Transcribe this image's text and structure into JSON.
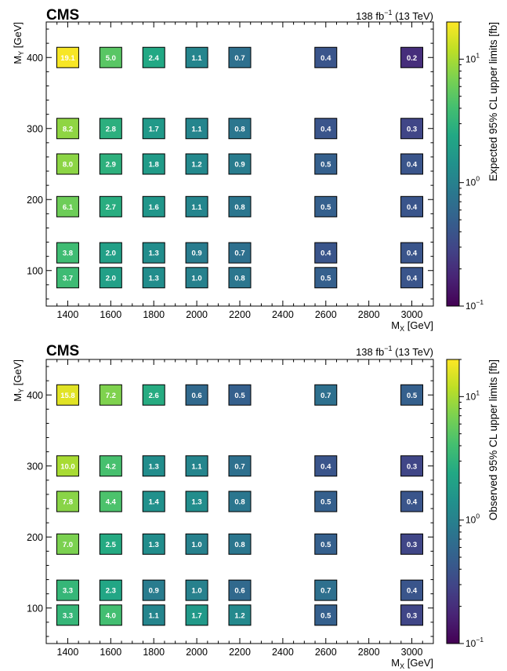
{
  "chart_data": [
    {
      "type": "heatmap",
      "experiment": "CMS",
      "lumi_main": "138 fb",
      "lumi_sup": "−1",
      "lumi_energy": " (13 TeV)",
      "xlabel_main": "M",
      "xlabel_sub": "X",
      "xlabel_unit": " [GeV]",
      "ylabel_main": "M",
      "ylabel_sub": "Y",
      "ylabel_unit": " [GeV]",
      "xlim": [
        1300,
        3100
      ],
      "ylim": [
        50,
        450
      ],
      "xticks": [
        1400,
        1600,
        1800,
        2000,
        2200,
        2400,
        2600,
        2800,
        3000
      ],
      "yticks": [
        100,
        200,
        300,
        400
      ],
      "colorbar": {
        "label": "Expected 95% CL upper limits [fb]",
        "scale": "log",
        "range": [
          0.1,
          20
        ],
        "ticks": [
          {
            "base": "10",
            "exp": "1",
            "value": 10
          },
          {
            "base": "10",
            "exp": "0",
            "value": 1
          },
          {
            "base": "10",
            "exp": "−1",
            "value": 0.1
          }
        ]
      },
      "cells": [
        {
          "x": 1400,
          "y": 400,
          "label": "19.1",
          "value": 19.1
        },
        {
          "x": 1600,
          "y": 400,
          "label": "5.0",
          "value": 5.0
        },
        {
          "x": 1800,
          "y": 400,
          "label": "2.4",
          "value": 2.4
        },
        {
          "x": 2000,
          "y": 400,
          "label": "1.1",
          "value": 1.1
        },
        {
          "x": 2200,
          "y": 400,
          "label": "0.7",
          "value": 0.7
        },
        {
          "x": 2600,
          "y": 400,
          "label": "0.4",
          "value": 0.4
        },
        {
          "x": 3000,
          "y": 400,
          "label": "0.2",
          "value": 0.2
        },
        {
          "x": 1400,
          "y": 300,
          "label": "8.2",
          "value": 8.2
        },
        {
          "x": 1600,
          "y": 300,
          "label": "2.8",
          "value": 2.8
        },
        {
          "x": 1800,
          "y": 300,
          "label": "1.7",
          "value": 1.7
        },
        {
          "x": 2000,
          "y": 300,
          "label": "1.1",
          "value": 1.1
        },
        {
          "x": 2200,
          "y": 300,
          "label": "0.8",
          "value": 0.8
        },
        {
          "x": 2600,
          "y": 300,
          "label": "0.4",
          "value": 0.4
        },
        {
          "x": 3000,
          "y": 300,
          "label": "0.3",
          "value": 0.3
        },
        {
          "x": 1400,
          "y": 250,
          "label": "8.0",
          "value": 8.0
        },
        {
          "x": 1600,
          "y": 250,
          "label": "2.9",
          "value": 2.9
        },
        {
          "x": 1800,
          "y": 250,
          "label": "1.8",
          "value": 1.8
        },
        {
          "x": 2000,
          "y": 250,
          "label": "1.2",
          "value": 1.2
        },
        {
          "x": 2200,
          "y": 250,
          "label": "0.9",
          "value": 0.9
        },
        {
          "x": 2600,
          "y": 250,
          "label": "0.5",
          "value": 0.5
        },
        {
          "x": 3000,
          "y": 250,
          "label": "0.4",
          "value": 0.4
        },
        {
          "x": 1400,
          "y": 190,
          "label": "6.1",
          "value": 6.1
        },
        {
          "x": 1600,
          "y": 190,
          "label": "2.7",
          "value": 2.7
        },
        {
          "x": 1800,
          "y": 190,
          "label": "1.6",
          "value": 1.6
        },
        {
          "x": 2000,
          "y": 190,
          "label": "1.1",
          "value": 1.1
        },
        {
          "x": 2200,
          "y": 190,
          "label": "0.8",
          "value": 0.8
        },
        {
          "x": 2600,
          "y": 190,
          "label": "0.5",
          "value": 0.5
        },
        {
          "x": 3000,
          "y": 190,
          "label": "0.4",
          "value": 0.4
        },
        {
          "x": 1400,
          "y": 125,
          "label": "3.8",
          "value": 3.8
        },
        {
          "x": 1600,
          "y": 125,
          "label": "2.0",
          "value": 2.0
        },
        {
          "x": 1800,
          "y": 125,
          "label": "1.3",
          "value": 1.3
        },
        {
          "x": 2000,
          "y": 125,
          "label": "0.9",
          "value": 0.9
        },
        {
          "x": 2200,
          "y": 125,
          "label": "0.7",
          "value": 0.7
        },
        {
          "x": 2600,
          "y": 125,
          "label": "0.4",
          "value": 0.4
        },
        {
          "x": 3000,
          "y": 125,
          "label": "0.4",
          "value": 0.4
        },
        {
          "x": 1400,
          "y": 90,
          "label": "3.7",
          "value": 3.7
        },
        {
          "x": 1600,
          "y": 90,
          "label": "2.0",
          "value": 2.0
        },
        {
          "x": 1800,
          "y": 90,
          "label": "1.3",
          "value": 1.3
        },
        {
          "x": 2000,
          "y": 90,
          "label": "1.0",
          "value": 1.0
        },
        {
          "x": 2200,
          "y": 90,
          "label": "0.8",
          "value": 0.8
        },
        {
          "x": 2600,
          "y": 90,
          "label": "0.5",
          "value": 0.5
        },
        {
          "x": 3000,
          "y": 90,
          "label": "0.4",
          "value": 0.4
        }
      ]
    },
    {
      "type": "heatmap",
      "experiment": "CMS",
      "lumi_main": "138 fb",
      "lumi_sup": "−1",
      "lumi_energy": " (13 TeV)",
      "xlabel_main": "M",
      "xlabel_sub": "X",
      "xlabel_unit": " [GeV]",
      "ylabel_main": "M",
      "ylabel_sub": "Y",
      "ylabel_unit": " [GeV]",
      "xlim": [
        1300,
        3100
      ],
      "ylim": [
        50,
        450
      ],
      "xticks": [
        1400,
        1600,
        1800,
        2000,
        2200,
        2400,
        2600,
        2800,
        3000
      ],
      "yticks": [
        100,
        200,
        300,
        400
      ],
      "colorbar": {
        "label": "Observed 95% CL upper limits [fb]",
        "scale": "log",
        "range": [
          0.1,
          20
        ],
        "ticks": [
          {
            "base": "10",
            "exp": "1",
            "value": 10
          },
          {
            "base": "10",
            "exp": "0",
            "value": 1
          },
          {
            "base": "10",
            "exp": "−1",
            "value": 0.1
          }
        ]
      },
      "cells": [
        {
          "x": 1400,
          "y": 400,
          "label": "15.8",
          "value": 15.8
        },
        {
          "x": 1600,
          "y": 400,
          "label": "7.2",
          "value": 7.2
        },
        {
          "x": 1800,
          "y": 400,
          "label": "2.6",
          "value": 2.6
        },
        {
          "x": 2000,
          "y": 400,
          "label": "0.6",
          "value": 0.6
        },
        {
          "x": 2200,
          "y": 400,
          "label": "0.5",
          "value": 0.5
        },
        {
          "x": 2600,
          "y": 400,
          "label": "0.7",
          "value": 0.7
        },
        {
          "x": 3000,
          "y": 400,
          "label": "0.5",
          "value": 0.5
        },
        {
          "x": 1400,
          "y": 300,
          "label": "10.0",
          "value": 10.0
        },
        {
          "x": 1600,
          "y": 300,
          "label": "4.2",
          "value": 4.2
        },
        {
          "x": 1800,
          "y": 300,
          "label": "1.3",
          "value": 1.3
        },
        {
          "x": 2000,
          "y": 300,
          "label": "1.1",
          "value": 1.1
        },
        {
          "x": 2200,
          "y": 300,
          "label": "0.7",
          "value": 0.7
        },
        {
          "x": 2600,
          "y": 300,
          "label": "0.4",
          "value": 0.4
        },
        {
          "x": 3000,
          "y": 300,
          "label": "0.3",
          "value": 0.3
        },
        {
          "x": 1400,
          "y": 250,
          "label": "7.8",
          "value": 7.8
        },
        {
          "x": 1600,
          "y": 250,
          "label": "4.4",
          "value": 4.4
        },
        {
          "x": 1800,
          "y": 250,
          "label": "1.4",
          "value": 1.4
        },
        {
          "x": 2000,
          "y": 250,
          "label": "1.3",
          "value": 1.3
        },
        {
          "x": 2200,
          "y": 250,
          "label": "0.8",
          "value": 0.8
        },
        {
          "x": 2600,
          "y": 250,
          "label": "0.5",
          "value": 0.5
        },
        {
          "x": 3000,
          "y": 250,
          "label": "0.4",
          "value": 0.4
        },
        {
          "x": 1400,
          "y": 190,
          "label": "7.0",
          "value": 7.0
        },
        {
          "x": 1600,
          "y": 190,
          "label": "2.5",
          "value": 2.5
        },
        {
          "x": 1800,
          "y": 190,
          "label": "1.3",
          "value": 1.3
        },
        {
          "x": 2000,
          "y": 190,
          "label": "1.0",
          "value": 1.0
        },
        {
          "x": 2200,
          "y": 190,
          "label": "0.8",
          "value": 0.8
        },
        {
          "x": 2600,
          "y": 190,
          "label": "0.5",
          "value": 0.5
        },
        {
          "x": 3000,
          "y": 190,
          "label": "0.3",
          "value": 0.3
        },
        {
          "x": 1400,
          "y": 125,
          "label": "3.3",
          "value": 3.3
        },
        {
          "x": 1600,
          "y": 125,
          "label": "2.3",
          "value": 2.3
        },
        {
          "x": 1800,
          "y": 125,
          "label": "0.9",
          "value": 0.9
        },
        {
          "x": 2000,
          "y": 125,
          "label": "1.0",
          "value": 1.0
        },
        {
          "x": 2200,
          "y": 125,
          "label": "0.6",
          "value": 0.6
        },
        {
          "x": 2600,
          "y": 125,
          "label": "0.7",
          "value": 0.7
        },
        {
          "x": 3000,
          "y": 125,
          "label": "0.4",
          "value": 0.4
        },
        {
          "x": 1400,
          "y": 90,
          "label": "3.3",
          "value": 3.3
        },
        {
          "x": 1600,
          "y": 90,
          "label": "4.0",
          "value": 4.0
        },
        {
          "x": 1800,
          "y": 90,
          "label": "1.1",
          "value": 1.1
        },
        {
          "x": 2000,
          "y": 90,
          "label": "1.7",
          "value": 1.7
        },
        {
          "x": 2200,
          "y": 90,
          "label": "1.2",
          "value": 1.2
        },
        {
          "x": 2600,
          "y": 90,
          "label": "0.5",
          "value": 0.5
        },
        {
          "x": 3000,
          "y": 90,
          "label": "0.3",
          "value": 0.3
        }
      ]
    }
  ]
}
